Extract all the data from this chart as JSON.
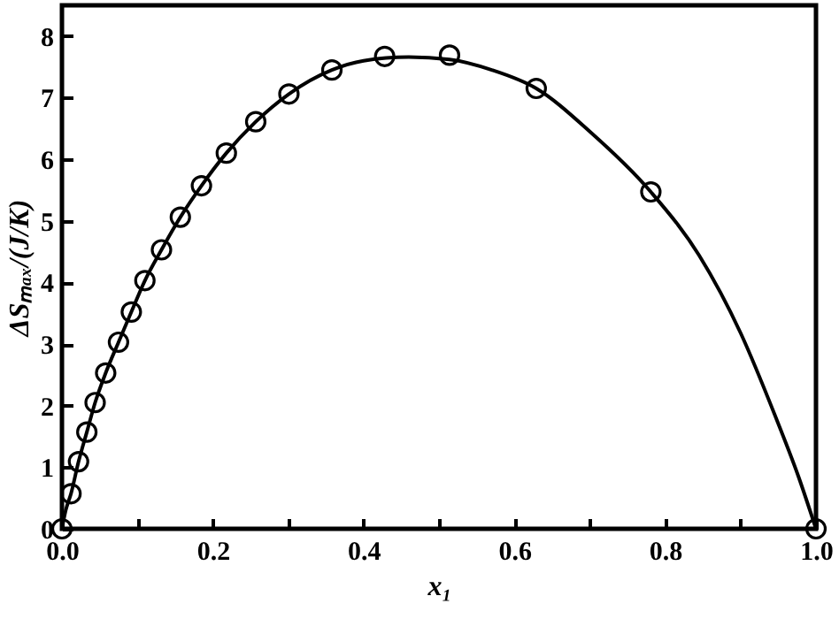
{
  "chart_data": {
    "type": "scatter",
    "xlabel": "x₁",
    "ylabel": "ΔSₘₐₓ/(J/K)",
    "xlim": [
      0,
      1.0
    ],
    "ylim": [
      0,
      8.5
    ],
    "xticks": [
      {
        "value": 0,
        "label": "0.0"
      },
      {
        "value": 0.1,
        "label": null
      },
      {
        "value": 0.2,
        "label": "0.2"
      },
      {
        "value": 0.3,
        "label": null
      },
      {
        "value": 0.4,
        "label": "0.4"
      },
      {
        "value": 0.5,
        "label": null
      },
      {
        "value": 0.6,
        "label": "0.6"
      },
      {
        "value": 0.7,
        "label": null
      },
      {
        "value": 0.8,
        "label": "0.8"
      },
      {
        "value": 0.9,
        "label": null
      },
      {
        "value": 1.0,
        "label": "1.0"
      }
    ],
    "yticks": [
      0,
      1,
      2,
      3,
      4,
      5,
      6,
      7,
      8
    ],
    "grid": false,
    "marker": "circle",
    "series": [
      {
        "type": "scatter",
        "color": "#000000",
        "x": [
          0,
          0.012,
          0.022,
          0.033,
          0.044,
          0.058,
          0.075,
          0.092,
          0.11,
          0.132,
          0.157,
          0.185,
          0.218,
          0.257,
          0.301,
          0.358,
          0.428,
          0.514,
          0.629,
          0.781,
          1.0
        ],
        "values": [
          0,
          0.57,
          1.09,
          1.57,
          2.05,
          2.53,
          3.03,
          3.52,
          4.03,
          4.53,
          5.06,
          5.57,
          6.1,
          6.61,
          7.06,
          7.45,
          7.67,
          7.69,
          7.15,
          5.47,
          0
        ]
      },
      {
        "type": "line",
        "color": "#000000",
        "line_style": "solid",
        "marker": "none",
        "x": [
          0,
          0.005,
          0.012,
          0.022,
          0.033,
          0.044,
          0.058,
          0.075,
          0.092,
          0.11,
          0.132,
          0.157,
          0.185,
          0.218,
          0.257,
          0.301,
          0.358,
          0.4,
          0.46,
          0.514,
          0.57,
          0.629,
          0.7,
          0.781,
          0.845,
          0.9,
          0.946,
          0.977,
          1.0
        ],
        "values": [
          0,
          0.3,
          0.57,
          1.09,
          1.57,
          2.05,
          2.53,
          3.03,
          3.52,
          4.03,
          4.53,
          5.06,
          5.57,
          6.1,
          6.61,
          7.06,
          7.45,
          7.6,
          7.66,
          7.62,
          7.45,
          7.15,
          6.45,
          5.47,
          4.44,
          3.18,
          1.83,
          0.84,
          0
        ]
      }
    ]
  }
}
